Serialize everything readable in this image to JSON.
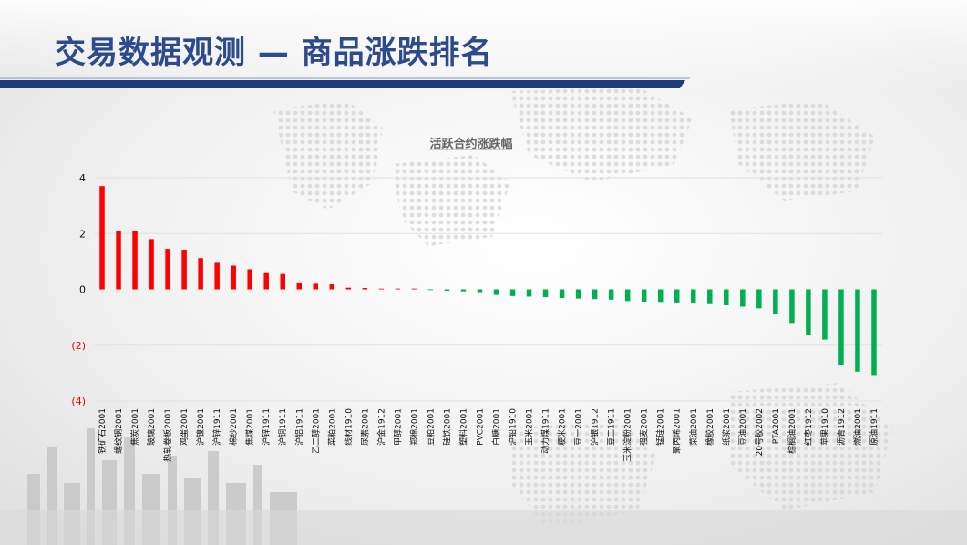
{
  "slide": {
    "title": "交易数据观测 — 商品涨跌排名"
  },
  "colors": {
    "up": "#ff0000",
    "down": "#00b050",
    "neg_label": "#e00000",
    "title": "#2c4a8c",
    "band": "#1f3a7a"
  },
  "chart_data": {
    "type": "bar",
    "title": "活跃合约涨跌幅",
    "xlabel": "",
    "ylabel": "",
    "ylim": [
      -4,
      4
    ],
    "yticks": [
      4,
      2,
      0,
      -2,
      -4
    ],
    "ytick_labels": [
      "4",
      "2",
      "0",
      "(2)",
      "(4)"
    ],
    "grid": true,
    "categories": [
      "铁矿石2001",
      "螺纹钢2001",
      "焦炭2001",
      "玻璃2001",
      "热轧卷板2001",
      "鸡蛋2001",
      "沪镍2001",
      "沪锌1911",
      "棉纱2001",
      "焦煤2001",
      "沪锌1911",
      "沪铜1911",
      "沪铝1911",
      "乙二醇2001",
      "菜粕2001",
      "线材1910",
      "尿素2001",
      "沪金1912",
      "甲醇2001",
      "郑棉2001",
      "豆粕2001",
      "硅铁2001",
      "塑料2001",
      "PVC2001",
      "白糖2001",
      "沪铅1910",
      "玉米2001",
      "动力煤1911",
      "粳米2001",
      "豆一2001",
      "沪银1912",
      "豆二1911",
      "玉米淀粉2001",
      "强麦2001",
      "锰硅2001",
      "聚丙烯2001",
      "菜油2001",
      "橡胶2001",
      "纸浆2001",
      "豆油2001",
      "20号胶2002",
      "PTA2001",
      "棕榈油2001",
      "红枣1912",
      "苹果1910",
      "沥青1912",
      "燃油2001",
      "原油1911"
    ],
    "values": [
      3.7,
      2.1,
      2.1,
      1.8,
      1.45,
      1.42,
      1.12,
      0.95,
      0.85,
      0.72,
      0.58,
      0.55,
      0.25,
      0.2,
      0.18,
      0.06,
      0.05,
      0.02,
      0.01,
      0.01,
      -0.02,
      -0.05,
      -0.07,
      -0.1,
      -0.2,
      -0.24,
      -0.26,
      -0.28,
      -0.31,
      -0.33,
      -0.35,
      -0.37,
      -0.42,
      -0.44,
      -0.45,
      -0.47,
      -0.5,
      -0.53,
      -0.57,
      -0.62,
      -0.68,
      -0.87,
      -1.2,
      -1.65,
      -1.8,
      -2.7,
      -2.95,
      -3.1
    ]
  }
}
